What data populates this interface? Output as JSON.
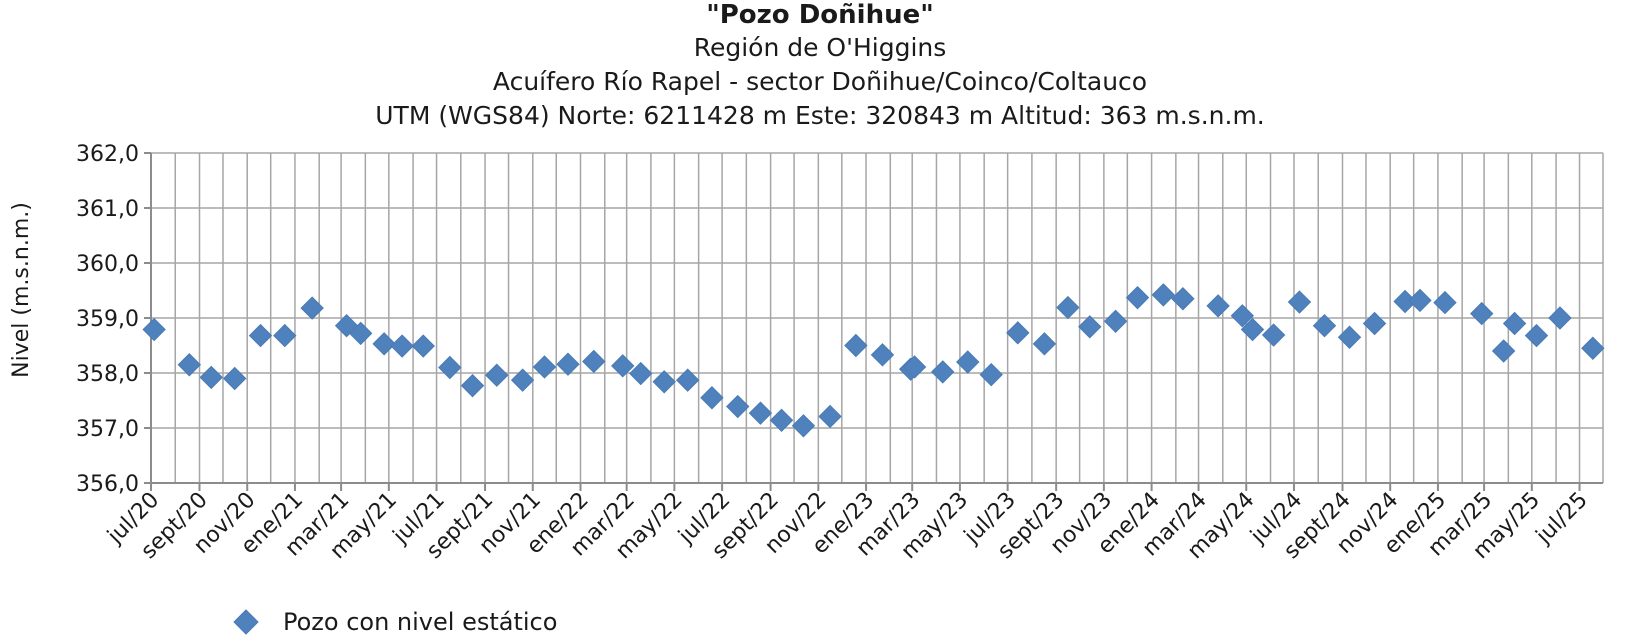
{
  "chart_data": {
    "type": "scatter",
    "title": "\"Pozo Doñihue\"",
    "subtitle_lines": [
      "Región de O'Higgins",
      "Acuífero Río Rapel - sector Doñihue/Coinco/Coltauco",
      "UTM (WGS84) Norte: 6211428 m  Este: 320843 m   Altitud: 363 m.s.n.m."
    ],
    "ylabel": "Nivel (m.s.n.m.)",
    "xlabel": "",
    "ylim": [
      356.0,
      362.0
    ],
    "y_ticks": [
      "356,0",
      "357,0",
      "358,0",
      "359,0",
      "360,0",
      "361,0",
      "362,0"
    ],
    "x_range": [
      "2020-07-01",
      "2025-07-31"
    ],
    "x_ticks": [
      {
        "date": "2020-07-01",
        "label": "jul/20"
      },
      {
        "date": "2020-09-01",
        "label": "sept/20"
      },
      {
        "date": "2020-11-01",
        "label": "nov/20"
      },
      {
        "date": "2021-01-01",
        "label": "ene/21"
      },
      {
        "date": "2021-03-01",
        "label": "mar/21"
      },
      {
        "date": "2021-05-01",
        "label": "may/21"
      },
      {
        "date": "2021-07-01",
        "label": "jul/21"
      },
      {
        "date": "2021-09-01",
        "label": "sept/21"
      },
      {
        "date": "2021-11-01",
        "label": "nov/21"
      },
      {
        "date": "2022-01-01",
        "label": "ene/22"
      },
      {
        "date": "2022-03-01",
        "label": "mar/22"
      },
      {
        "date": "2022-05-01",
        "label": "may/22"
      },
      {
        "date": "2022-07-01",
        "label": "jul/22"
      },
      {
        "date": "2022-09-01",
        "label": "sept/22"
      },
      {
        "date": "2022-11-01",
        "label": "nov/22"
      },
      {
        "date": "2023-01-01",
        "label": "ene/23"
      },
      {
        "date": "2023-03-01",
        "label": "mar/23"
      },
      {
        "date": "2023-05-01",
        "label": "may/23"
      },
      {
        "date": "2023-07-01",
        "label": "jul/23"
      },
      {
        "date": "2023-09-01",
        "label": "sept/23"
      },
      {
        "date": "2023-11-01",
        "label": "nov/23"
      },
      {
        "date": "2024-01-01",
        "label": "ene/24"
      },
      {
        "date": "2024-03-01",
        "label": "mar/24"
      },
      {
        "date": "2024-05-01",
        "label": "may/24"
      },
      {
        "date": "2024-07-01",
        "label": "jul/24"
      },
      {
        "date": "2024-09-01",
        "label": "sept/24"
      },
      {
        "date": "2024-11-01",
        "label": "nov/24"
      },
      {
        "date": "2025-01-01",
        "label": "ene/25"
      },
      {
        "date": "2025-03-01",
        "label": "mar/25"
      },
      {
        "date": "2025-05-01",
        "label": "may/25"
      },
      {
        "date": "2025-07-01",
        "label": "jul/25"
      }
    ],
    "grid": true,
    "legend_position": "bottom-left",
    "series": [
      {
        "name": "Pozo con nivel estático",
        "color": "#4f81bd",
        "marker": "diamond",
        "points": [
          {
            "x": "2020-07-05",
            "y": 358.79
          },
          {
            "x": "2020-08-19",
            "y": 358.15
          },
          {
            "x": "2020-09-16",
            "y": 357.92
          },
          {
            "x": "2020-10-16",
            "y": 357.9
          },
          {
            "x": "2020-11-18",
            "y": 358.68
          },
          {
            "x": "2020-12-19",
            "y": 358.68
          },
          {
            "x": "2021-01-23",
            "y": 359.18
          },
          {
            "x": "2021-03-08",
            "y": 358.86
          },
          {
            "x": "2021-03-26",
            "y": 358.72
          },
          {
            "x": "2021-04-25",
            "y": 358.53
          },
          {
            "x": "2021-05-18",
            "y": 358.49
          },
          {
            "x": "2021-06-14",
            "y": 358.49
          },
          {
            "x": "2021-07-18",
            "y": 358.1
          },
          {
            "x": "2021-08-16",
            "y": 357.77
          },
          {
            "x": "2021-09-16",
            "y": 357.96
          },
          {
            "x": "2021-10-19",
            "y": 357.87
          },
          {
            "x": "2021-11-16",
            "y": 358.11
          },
          {
            "x": "2021-12-16",
            "y": 358.16
          },
          {
            "x": "2022-01-18",
            "y": 358.21
          },
          {
            "x": "2022-02-24",
            "y": 358.13
          },
          {
            "x": "2022-03-19",
            "y": 357.99
          },
          {
            "x": "2022-04-18",
            "y": 357.84
          },
          {
            "x": "2022-05-18",
            "y": 357.87
          },
          {
            "x": "2022-06-18",
            "y": 357.55
          },
          {
            "x": "2022-07-21",
            "y": 357.39
          },
          {
            "x": "2022-08-19",
            "y": 357.27
          },
          {
            "x": "2022-09-15",
            "y": 357.14
          },
          {
            "x": "2022-10-13",
            "y": 357.04
          },
          {
            "x": "2022-11-16",
            "y": 357.21
          },
          {
            "x": "2022-12-19",
            "y": 358.5
          },
          {
            "x": "2023-01-22",
            "y": 358.33
          },
          {
            "x": "2023-02-27",
            "y": 358.07
          },
          {
            "x": "2023-03-04",
            "y": 358.11
          },
          {
            "x": "2023-04-09",
            "y": 358.02
          },
          {
            "x": "2023-05-11",
            "y": 358.2
          },
          {
            "x": "2023-06-10",
            "y": 357.97
          },
          {
            "x": "2023-07-14",
            "y": 358.73
          },
          {
            "x": "2023-08-17",
            "y": 358.53
          },
          {
            "x": "2023-09-16",
            "y": 359.19
          },
          {
            "x": "2023-10-14",
            "y": 358.84
          },
          {
            "x": "2023-11-16",
            "y": 358.94
          },
          {
            "x": "2023-12-14",
            "y": 359.37
          },
          {
            "x": "2024-01-16",
            "y": 359.42
          },
          {
            "x": "2024-02-10",
            "y": 359.35
          },
          {
            "x": "2024-03-26",
            "y": 359.22
          },
          {
            "x": "2024-04-26",
            "y": 359.04
          },
          {
            "x": "2024-05-09",
            "y": 358.79
          },
          {
            "x": "2024-06-05",
            "y": 358.69
          },
          {
            "x": "2024-07-08",
            "y": 359.29
          },
          {
            "x": "2024-08-09",
            "y": 358.86
          },
          {
            "x": "2024-09-10",
            "y": 358.65
          },
          {
            "x": "2024-10-12",
            "y": 358.9
          },
          {
            "x": "2024-11-20",
            "y": 359.3
          },
          {
            "x": "2024-12-09",
            "y": 359.32
          },
          {
            "x": "2025-01-10",
            "y": 359.28
          },
          {
            "x": "2025-02-26",
            "y": 359.08
          },
          {
            "x": "2025-03-26",
            "y": 358.4
          },
          {
            "x": "2025-04-09",
            "y": 358.9
          },
          {
            "x": "2025-05-07",
            "y": 358.68
          },
          {
            "x": "2025-06-06",
            "y": 359.0
          },
          {
            "x": "2025-07-18",
            "y": 358.45
          }
        ]
      }
    ]
  }
}
